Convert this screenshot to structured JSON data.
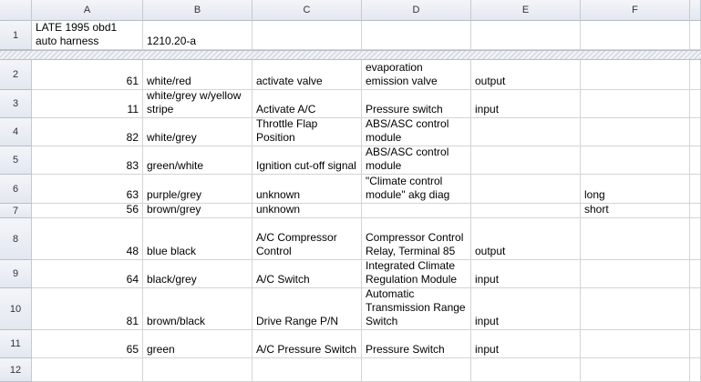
{
  "columns": [
    "A",
    "B",
    "C",
    "D",
    "E",
    "F"
  ],
  "row_numbers": [
    1,
    2,
    3,
    4,
    5,
    6,
    7,
    8,
    9,
    10,
    11,
    12
  ],
  "rows": [
    [
      "LATE 1995 obd1 auto harness",
      "1210.20-a",
      null,
      null,
      null,
      null
    ],
    [
      61,
      "white/red",
      "activate valve",
      "evaporation emission valve",
      "output",
      null
    ],
    [
      11,
      "white/grey w/yellow stripe",
      "Activate A/C",
      "Pressure switch",
      "input",
      null
    ],
    [
      82,
      "white/grey",
      "Throttle Flap Position",
      "ABS/ASC control module",
      null,
      null
    ],
    [
      83,
      "green/white",
      "Ignition cut-off signal",
      "ABS/ASC control module",
      null,
      null
    ],
    [
      63,
      "purple/grey",
      "unknown",
      "\"Climate control module\" akg diag",
      null,
      "long"
    ],
    [
      56,
      "brown/grey",
      "unknown",
      null,
      null,
      "short"
    ],
    [
      48,
      "blue black",
      "A/C Compressor Control",
      "Compressor Control Relay, Terminal 85",
      "output",
      null
    ],
    [
      64,
      "black/grey",
      "A/C Switch",
      "Integrated Climate Regulation Module",
      "input",
      null
    ],
    [
      81,
      "brown/black",
      "Drive Range P/N",
      "Automatic Transmission Range Switch",
      "input",
      null
    ],
    [
      65,
      "green",
      "A/C Pressure Switch",
      "Pressure Switch",
      "input",
      null
    ]
  ]
}
